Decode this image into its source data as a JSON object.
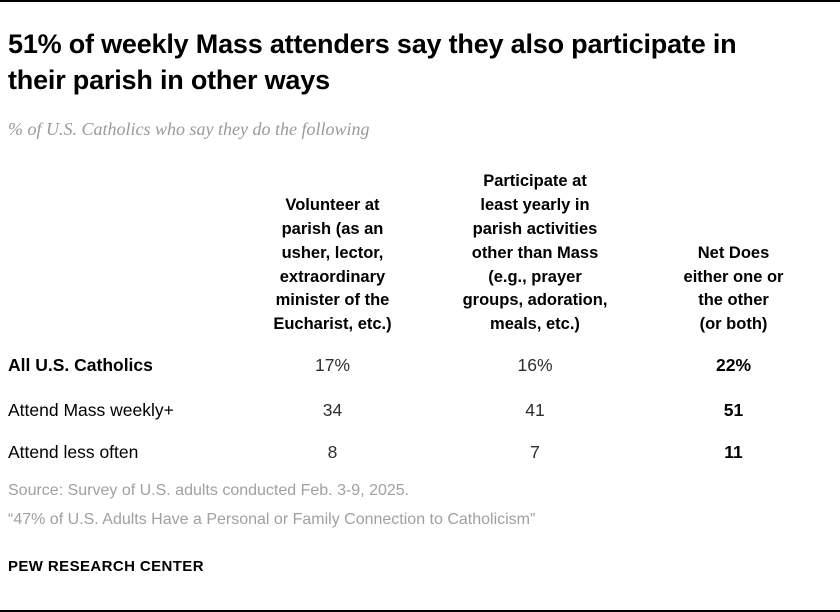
{
  "title": "51% of weekly Mass attenders say they also participate in their parish in other ways",
  "subtitle": "% of U.S. Catholics who say they do the following",
  "table": {
    "headers": [
      "Volunteer at\nparish (as an\nusher, lector,\nextraordinary\nminister of the\nEucharist, etc.)",
      "Participate at\nleast yearly in\nparish activities\nother than Mass\n(e.g., prayer\ngroups, adoration,\nmeals, etc.)",
      "Net Does\neither one or\nthe other\n(or both)"
    ],
    "rows": [
      {
        "label": "All U.S. Catholics",
        "values": [
          "17%",
          "16%",
          "22%"
        ]
      },
      {
        "label": "Attend Mass weekly+",
        "values": [
          "34",
          "41",
          "51"
        ]
      },
      {
        "label": "Attend less often",
        "values": [
          "8",
          "7",
          "11"
        ]
      }
    ]
  },
  "source": "Source: Survey of U.S. adults conducted Feb. 3-9, 2025.",
  "note": "“47% of U.S. Adults Have a Personal or Family Connection to Catholicism”",
  "footer": "PEW RESEARCH CENTER",
  "chart_data": {
    "type": "table",
    "title": "51% of weekly Mass attenders say they also participate in their parish in other ways",
    "subtitle": "% of U.S. Catholics who say they do the following",
    "categories": [
      "All U.S. Catholics",
      "Attend Mass weekly+",
      "Attend less often"
    ],
    "series": [
      {
        "name": "Volunteer at parish (as an usher, lector, extraordinary minister of the Eucharist, etc.)",
        "values": [
          17,
          34,
          8
        ]
      },
      {
        "name": "Participate at least yearly in parish activities other than Mass (e.g., prayer groups, adoration, meals, etc.)",
        "values": [
          16,
          41,
          7
        ]
      },
      {
        "name": "Net Does either one or the other (or both)",
        "values": [
          22,
          51,
          11
        ]
      }
    ],
    "unit": "%",
    "notes": [
      "Source: Survey of U.S. adults conducted Feb. 3-9, 2025.",
      "“47% of U.S. Adults Have a Personal or Family Connection to Catholicism”"
    ]
  }
}
